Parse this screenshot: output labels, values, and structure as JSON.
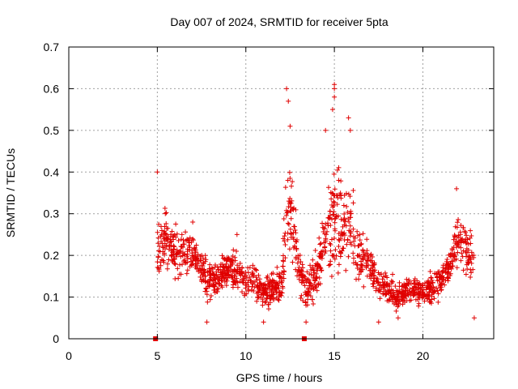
{
  "chart_data": {
    "type": "scatter",
    "title": "Day 007 of 2024, SRMTID for receiver 5pta",
    "xlabel": "GPS time / hours",
    "ylabel": "SRMTID / TECUs",
    "xlim": [
      0,
      24
    ],
    "ylim": [
      0,
      0.7
    ],
    "x_ticks": [
      0,
      5,
      10,
      15,
      20
    ],
    "x_tick_labels": [
      "0",
      "5",
      "10",
      "15",
      "20"
    ],
    "y_ticks": [
      0,
      0.1,
      0.2,
      0.3,
      0.4,
      0.5,
      0.6,
      0.7
    ],
    "y_tick_labels": [
      "0",
      "0.1",
      "0.2",
      "0.3",
      "0.4",
      "0.5",
      "0.6",
      "0.7"
    ],
    "grid": true,
    "marker": "plus",
    "color": "#e00000",
    "gap_markers": [
      {
        "x": 4.9,
        "y": 0
      },
      {
        "x": 13.3,
        "y": 0
      }
    ],
    "envelope": {
      "description": "approximate typical value and spread of the scattered points per time window",
      "x": [
        5.0,
        5.5,
        6.0,
        6.5,
        7.0,
        7.5,
        8.0,
        8.5,
        9.0,
        9.5,
        10.0,
        10.5,
        11.0,
        11.5,
        12.0,
        12.3,
        12.6,
        13.0,
        13.5,
        14.0,
        14.5,
        15.0,
        15.5,
        16.0,
        16.5,
        17.0,
        17.5,
        18.0,
        18.5,
        19.0,
        19.5,
        20.0,
        20.5,
        21.0,
        21.5,
        22.0,
        22.5,
        22.9
      ],
      "center": [
        0.22,
        0.24,
        0.2,
        0.22,
        0.2,
        0.17,
        0.13,
        0.15,
        0.17,
        0.16,
        0.14,
        0.14,
        0.11,
        0.12,
        0.13,
        0.26,
        0.3,
        0.16,
        0.12,
        0.15,
        0.25,
        0.3,
        0.28,
        0.26,
        0.19,
        0.18,
        0.13,
        0.12,
        0.1,
        0.11,
        0.12,
        0.11,
        0.12,
        0.14,
        0.17,
        0.25,
        0.2,
        0.18
      ],
      "spread": [
        0.07,
        0.06,
        0.05,
        0.05,
        0.04,
        0.04,
        0.04,
        0.04,
        0.04,
        0.04,
        0.04,
        0.04,
        0.035,
        0.035,
        0.04,
        0.1,
        0.11,
        0.05,
        0.04,
        0.05,
        0.1,
        0.11,
        0.11,
        0.1,
        0.06,
        0.05,
        0.035,
        0.03,
        0.03,
        0.03,
        0.03,
        0.03,
        0.035,
        0.04,
        0.04,
        0.06,
        0.06,
        0.06
      ]
    },
    "peaks": [
      {
        "x": 5.0,
        "y": 0.4
      },
      {
        "x": 12.3,
        "y": 0.6
      },
      {
        "x": 12.4,
        "y": 0.57
      },
      {
        "x": 12.5,
        "y": 0.51
      },
      {
        "x": 14.5,
        "y": 0.5
      },
      {
        "x": 15.0,
        "y": 0.61
      },
      {
        "x": 15.0,
        "y": 0.6
      },
      {
        "x": 14.9,
        "y": 0.55
      },
      {
        "x": 15.0,
        "y": 0.58
      },
      {
        "x": 15.8,
        "y": 0.53
      },
      {
        "x": 15.9,
        "y": 0.5
      },
      {
        "x": 21.9,
        "y": 0.36
      },
      {
        "x": 7.0,
        "y": 0.28
      },
      {
        "x": 9.5,
        "y": 0.25
      }
    ],
    "lows": [
      {
        "x": 7.8,
        "y": 0.04
      },
      {
        "x": 11.0,
        "y": 0.04
      },
      {
        "x": 13.4,
        "y": 0.04
      },
      {
        "x": 17.5,
        "y": 0.04
      },
      {
        "x": 18.6,
        "y": 0.05
      },
      {
        "x": 22.9,
        "y": 0.05
      }
    ]
  }
}
